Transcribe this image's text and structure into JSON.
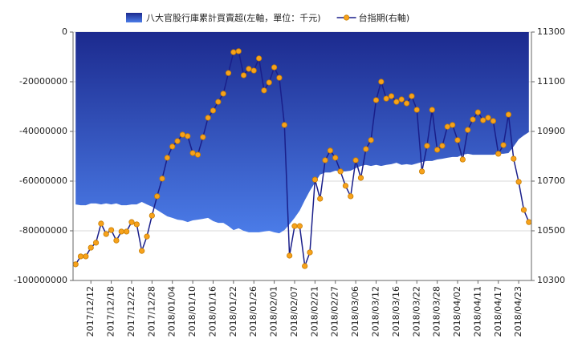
{
  "chart_data": {
    "type": "area_line",
    "categories": [
      null,
      null,
      null,
      "2017/12/12",
      null,
      null,
      null,
      "2017/12/18",
      null,
      null,
      null,
      "2017/12/22",
      null,
      null,
      null,
      "2017/12/28",
      null,
      null,
      null,
      "2018/01/04",
      null,
      null,
      null,
      "2018/01/10",
      null,
      null,
      null,
      "2018/01/16",
      null,
      null,
      null,
      "2018/01/22",
      null,
      null,
      null,
      "2018/01/26",
      null,
      null,
      null,
      "2018/02/01",
      null,
      null,
      null,
      "2018/02/07",
      null,
      null,
      null,
      "2018/02/21",
      null,
      null,
      null,
      "2018/02/27",
      null,
      null,
      null,
      "2018/03/06",
      null,
      null,
      null,
      "2018/03/12",
      null,
      null,
      null,
      "2018/03/16",
      null,
      null,
      null,
      "2018/03/22",
      null,
      null,
      null,
      "2018/03/28",
      null,
      null,
      null,
      "2018/04/02",
      null,
      null,
      null,
      "2018/04/11",
      null,
      null,
      null,
      "2018/04/17",
      null,
      null,
      null,
      "2018/04/23",
      null,
      null
    ],
    "series": [
      {
        "name": "八大官股行庫累計買賣超(左軸，單位：千元)",
        "type": "area",
        "color": "#1c2a8e",
        "values": [
          -69400000,
          -69700000,
          -69700000,
          -69000000,
          -69000000,
          -69400000,
          -69000000,
          -69400000,
          -69000000,
          -69700000,
          -69700000,
          -69400000,
          -69400000,
          -68400000,
          -69400000,
          -70300000,
          -71600000,
          -72900000,
          -74200000,
          -74800000,
          -75500000,
          -75800000,
          -76500000,
          -75800000,
          -75500000,
          -75200000,
          -74800000,
          -76100000,
          -76800000,
          -76800000,
          -78100000,
          -79700000,
          -79000000,
          -80000000,
          -80600000,
          -80600000,
          -80600000,
          -80300000,
          -80000000,
          -80600000,
          -81000000,
          -79700000,
          -77400000,
          -74800000,
          -71900000,
          -67700000,
          -63900000,
          -60600000,
          -57400000,
          -56500000,
          -56500000,
          -55800000,
          -56100000,
          -56100000,
          -55800000,
          -54800000,
          -53900000,
          -53500000,
          -53900000,
          -53500000,
          -53900000,
          -53500000,
          -53200000,
          -52600000,
          -53500000,
          -53200000,
          -53500000,
          -52900000,
          -52300000,
          -51900000,
          -51900000,
          -51300000,
          -51000000,
          -50600000,
          -50300000,
          -50300000,
          -49400000,
          -49000000,
          -49400000,
          -49400000,
          -49400000,
          -49400000,
          -49400000,
          -49000000,
          -49000000,
          -48700000,
          -46100000,
          -43200000,
          -41600000,
          -40300000
        ]
      },
      {
        "name": "台指期(右軸)",
        "type": "line",
        "axis": "y2",
        "color": "#1a1f8a",
        "marker_color": "#f7a21b",
        "values": [
          10365,
          10397,
          10397,
          10432,
          10452,
          10529,
          10487,
          10503,
          10461,
          10497,
          10497,
          10535,
          10526,
          10419,
          10477,
          10561,
          10639,
          10710,
          10794,
          10839,
          10861,
          10887,
          10881,
          10813,
          10806,
          10877,
          10955,
          10984,
          11019,
          11052,
          11135,
          11219,
          11223,
          11126,
          11152,
          11145,
          11194,
          11065,
          11097,
          11158,
          11116,
          10926,
          10400,
          10519,
          10519,
          10358,
          10413,
          10706,
          10629,
          10784,
          10823,
          10794,
          10739,
          10681,
          10639,
          10784,
          10713,
          10829,
          10865,
          11026,
          11100,
          11032,
          11042,
          11019,
          11029,
          11013,
          11042,
          10987,
          10739,
          10842,
          10987,
          10826,
          10842,
          10919,
          10926,
          10865,
          10787,
          10906,
          10948,
          10977,
          10945,
          10955,
          10942,
          10810,
          10845,
          10968,
          10790,
          10697,
          10584,
          10535
        ]
      }
    ],
    "ylim": [
      -100000000,
      0
    ],
    "yticks": [
      0,
      -20000000,
      -40000000,
      -60000000,
      -80000000,
      -100000000
    ],
    "y2lim": [
      10300,
      11300
    ],
    "y2ticks": [
      10300,
      10500,
      10700,
      10900,
      11100,
      11300
    ],
    "grid": true,
    "legend": "top"
  }
}
